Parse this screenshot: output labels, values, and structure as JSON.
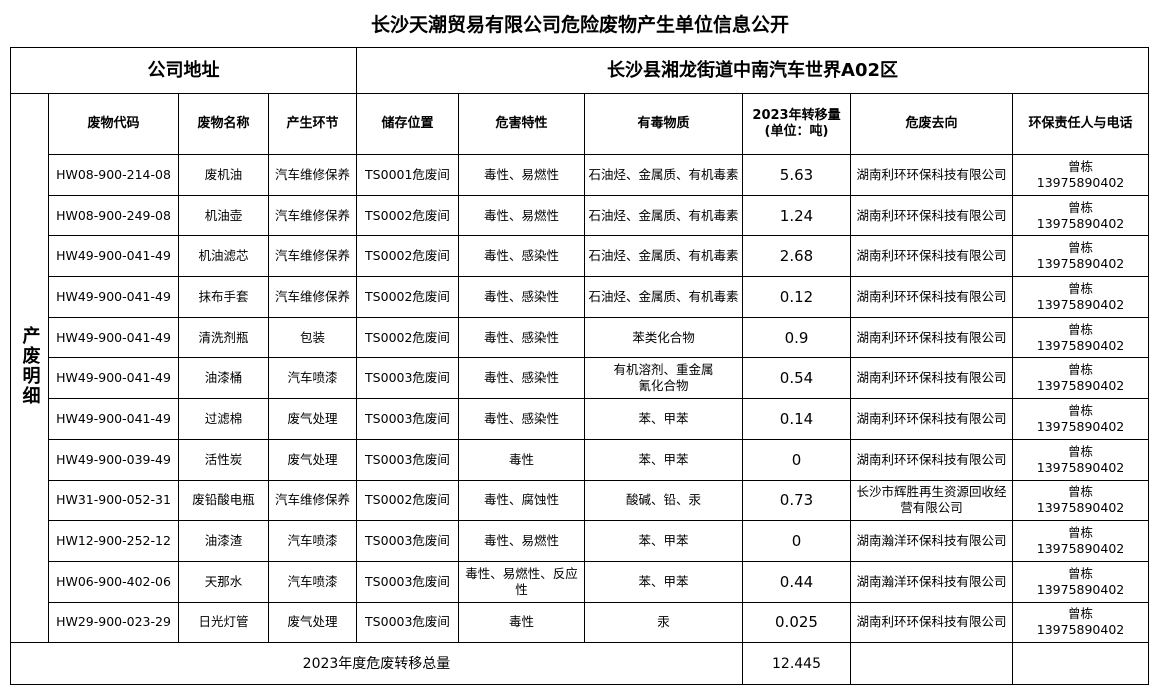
{
  "title": "长沙天潮贸易有限公司危险废物产生单位信息公开",
  "address_label": "公司地址",
  "address_value": "长沙县湘龙街道中南汽车世界A02区",
  "side_label": "产废明细",
  "headers": [
    "废物代码",
    "废物名称",
    "产生环节",
    "储存位置",
    "危害特性",
    "有毒物质",
    "2023年转移量\n(单位：吨)",
    "危废去向",
    "环保责任人与电话"
  ],
  "rows": [
    [
      "HW08-900-214-08",
      "废机油",
      "汽车维修保养",
      "TS0001危废间",
      "毒性、易燃性",
      "石油烃、金属质、有机毒素",
      "5.63",
      "湖南利环环保科技有限公司",
      "曾栋",
      "13975890402"
    ],
    [
      "HW08-900-249-08",
      "机油壶",
      "汽车维修保养",
      "TS0002危废间",
      "毒性、易燃性",
      "石油烃、金属质、有机毒素",
      "1.24",
      "湖南利环环保科技有限公司",
      "曾栋",
      "13975890402"
    ],
    [
      "HW49-900-041-49",
      "机油滤芯",
      "汽车维修保养",
      "TS0002危废间",
      "毒性、感染性",
      "石油烃、金属质、有机毒素",
      "2.68",
      "湖南利环环保科技有限公司",
      "曾栋",
      "13975890402"
    ],
    [
      "HW49-900-041-49",
      "抹布手套",
      "汽车维修保养",
      "TS0002危废间",
      "毒性、感染性",
      "石油烃、金属质、有机毒素",
      "0.12",
      "湖南利环环保科技有限公司",
      "曾栋",
      "13975890402"
    ],
    [
      "HW49-900-041-49",
      "清洗剂瓶",
      "包装",
      "TS0002危废间",
      "毒性、感染性",
      "苯类化合物",
      "0.9",
      "湖南利环环保科技有限公司",
      "曾栋",
      "13975890402"
    ],
    [
      "HW49-900-041-49",
      "油漆桶",
      "汽车喷漆",
      "TS0003危废间",
      "毒性、感染性",
      "有机溶剂、重金属\n氰化合物",
      "0.54",
      "湖南利环环保科技有限公司",
      "曾栋",
      "13975890402"
    ],
    [
      "HW49-900-041-49",
      "过滤棉",
      "废气处理",
      "TS0003危废间",
      "毒性、感染性",
      "苯、甲苯",
      "0.14",
      "湖南利环环保科技有限公司",
      "曾栋",
      "13975890402"
    ],
    [
      "HW49-900-039-49",
      "活性炭",
      "废气处理",
      "TS0003危废间",
      "毒性",
      "苯、甲苯",
      "0",
      "湖南利环环保科技有限公司",
      "曾栋",
      "13975890402"
    ],
    [
      "HW31-900-052-31",
      "废铅酸电瓶",
      "汽车维修保养",
      "TS0002危废间",
      "毒性、腐蚀性",
      "酸碱、铅、汞",
      "0.73",
      "长沙市辉胜再生资源回收经营有限公司",
      "曾栋",
      "13975890402"
    ],
    [
      "HW12-900-252-12",
      "油漆渣",
      "汽车喷漆",
      "TS0003危废间",
      "毒性、易燃性",
      "苯、甲苯",
      "0",
      "湖南瀚洋环保科技有限公司",
      "曾栋",
      "13975890402"
    ],
    [
      "HW06-900-402-06",
      "天那水",
      "汽车喷漆",
      "TS0003危废间",
      "毒性、易燃性、反应性",
      "苯、甲苯",
      "0.44",
      "湖南瀚洋环保科技有限公司",
      "曾栋",
      "13975890402"
    ],
    [
      "HW29-900-023-29",
      "日光灯管",
      "废气处理",
      "TS0003危废间",
      "毒性",
      "汞",
      "0.025",
      "湖南利环环保科技有限公司",
      "曾栋",
      "13975890402"
    ]
  ],
  "total_label": "2023年度危废转移总量",
  "total_value": "12.445"
}
